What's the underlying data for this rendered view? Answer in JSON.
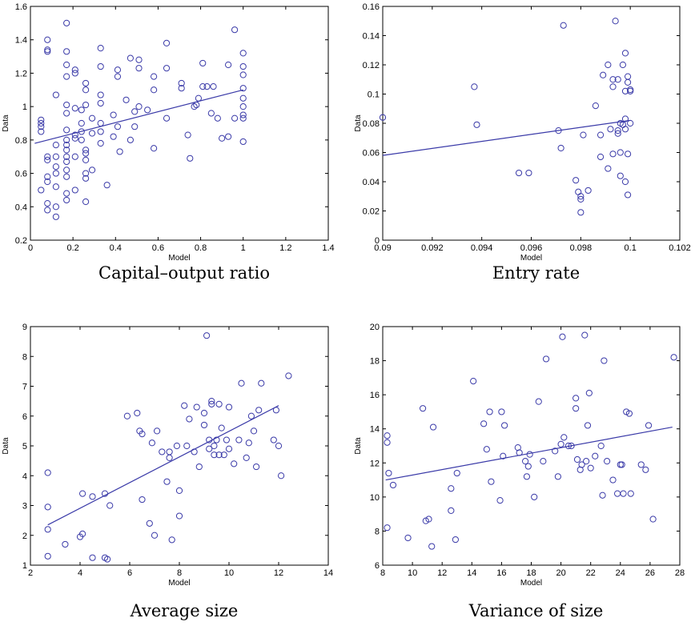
{
  "chart_data": [
    {
      "type": "scatter",
      "caption": "Capital–output ratio",
      "xlabel": "Model",
      "ylabel": "Data",
      "xlim": [
        0,
        1.4
      ],
      "ylim": [
        0.2,
        1.6
      ],
      "xticks": [
        "0",
        "0.2",
        "0.4",
        "0.6",
        "0.8",
        "1",
        "1.2",
        "1.4"
      ],
      "yticks": [
        "0.2",
        "0.4",
        "0.6",
        "0.8",
        "1",
        "1.2",
        "1.4",
        "1.6"
      ],
      "fit_line": [
        [
          0.02,
          0.78
        ],
        [
          1.0,
          1.1
        ]
      ],
      "points": [
        [
          0.05,
          0.9
        ],
        [
          0.05,
          0.88
        ],
        [
          0.05,
          0.85
        ],
        [
          0.05,
          0.5
        ],
        [
          0.05,
          0.92
        ],
        [
          0.08,
          1.4
        ],
        [
          0.08,
          1.34
        ],
        [
          0.08,
          1.33
        ],
        [
          0.08,
          0.7
        ],
        [
          0.08,
          0.68
        ],
        [
          0.08,
          0.58
        ],
        [
          0.08,
          0.55
        ],
        [
          0.08,
          0.42
        ],
        [
          0.08,
          0.38
        ],
        [
          0.12,
          1.07
        ],
        [
          0.12,
          0.77
        ],
        [
          0.12,
          0.7
        ],
        [
          0.12,
          0.64
        ],
        [
          0.12,
          0.6
        ],
        [
          0.12,
          0.52
        ],
        [
          0.12,
          0.4
        ],
        [
          0.12,
          0.34
        ],
        [
          0.17,
          1.5
        ],
        [
          0.17,
          1.33
        ],
        [
          0.17,
          1.25
        ],
        [
          0.17,
          1.18
        ],
        [
          0.17,
          1.01
        ],
        [
          0.17,
          0.96
        ],
        [
          0.17,
          0.86
        ],
        [
          0.17,
          0.8
        ],
        [
          0.17,
          0.77
        ],
        [
          0.17,
          0.74
        ],
        [
          0.17,
          0.7
        ],
        [
          0.17,
          0.67
        ],
        [
          0.17,
          0.62
        ],
        [
          0.17,
          0.58
        ],
        [
          0.17,
          0.48
        ],
        [
          0.17,
          0.44
        ],
        [
          0.21,
          1.22
        ],
        [
          0.21,
          1.2
        ],
        [
          0.21,
          0.99
        ],
        [
          0.21,
          0.83
        ],
        [
          0.21,
          0.81
        ],
        [
          0.21,
          0.7
        ],
        [
          0.21,
          0.5
        ],
        [
          0.24,
          0.98
        ],
        [
          0.24,
          0.9
        ],
        [
          0.24,
          0.85
        ],
        [
          0.24,
          0.8
        ],
        [
          0.26,
          1.14
        ],
        [
          0.26,
          1.1
        ],
        [
          0.26,
          1.01
        ],
        [
          0.26,
          0.74
        ],
        [
          0.26,
          0.72
        ],
        [
          0.26,
          0.68
        ],
        [
          0.26,
          0.6
        ],
        [
          0.26,
          0.57
        ],
        [
          0.26,
          0.43
        ],
        [
          0.29,
          0.93
        ],
        [
          0.29,
          0.84
        ],
        [
          0.29,
          0.62
        ],
        [
          0.33,
          1.35
        ],
        [
          0.33,
          1.24
        ],
        [
          0.33,
          1.07
        ],
        [
          0.33,
          1.02
        ],
        [
          0.33,
          0.9
        ],
        [
          0.33,
          0.85
        ],
        [
          0.33,
          0.78
        ],
        [
          0.36,
          0.53
        ],
        [
          0.39,
          0.95
        ],
        [
          0.39,
          0.82
        ],
        [
          0.41,
          1.22
        ],
        [
          0.41,
          1.18
        ],
        [
          0.41,
          0.88
        ],
        [
          0.42,
          0.73
        ],
        [
          0.45,
          1.04
        ],
        [
          0.47,
          1.29
        ],
        [
          0.47,
          0.8
        ],
        [
          0.49,
          0.97
        ],
        [
          0.49,
          0.88
        ],
        [
          0.51,
          1.28
        ],
        [
          0.51,
          1.23
        ],
        [
          0.51,
          1.0
        ],
        [
          0.55,
          0.98
        ],
        [
          0.58,
          1.18
        ],
        [
          0.58,
          1.1
        ],
        [
          0.58,
          0.75
        ],
        [
          0.64,
          1.38
        ],
        [
          0.64,
          1.23
        ],
        [
          0.64,
          0.93
        ],
        [
          0.71,
          1.14
        ],
        [
          0.71,
          1.11
        ],
        [
          0.74,
          0.83
        ],
        [
          0.75,
          0.69
        ],
        [
          0.77,
          1.0
        ],
        [
          0.78,
          1.01
        ],
        [
          0.79,
          1.05
        ],
        [
          0.81,
          1.12
        ],
        [
          0.81,
          1.26
        ],
        [
          0.83,
          1.12
        ],
        [
          0.85,
          0.96
        ],
        [
          0.86,
          1.12
        ],
        [
          0.88,
          0.93
        ],
        [
          0.9,
          0.81
        ],
        [
          0.93,
          1.25
        ],
        [
          0.93,
          0.82
        ],
        [
          0.96,
          1.46
        ],
        [
          0.96,
          0.93
        ],
        [
          1.0,
          1.32
        ],
        [
          1.0,
          1.24
        ],
        [
          1.0,
          1.19
        ],
        [
          1.0,
          1.11
        ],
        [
          1.0,
          1.05
        ],
        [
          1.0,
          1.0
        ],
        [
          1.0,
          0.95
        ],
        [
          1.0,
          0.93
        ],
        [
          1.0,
          0.79
        ]
      ]
    },
    {
      "type": "scatter",
      "caption": "Entry rate",
      "xlabel": "Model",
      "ylabel": "Data",
      "xlim": [
        0.09,
        0.102
      ],
      "ylim": [
        0,
        0.16
      ],
      "xticks": [
        "0.09",
        "0.092",
        "0.094",
        "0.096",
        "0.098",
        "0.1",
        "0.102"
      ],
      "yticks": [
        "0",
        "0.02",
        "0.04",
        "0.06",
        "0.08",
        "0.1",
        "0.12",
        "0.14",
        "0.16"
      ],
      "fit_line": [
        [
          0.09,
          0.058
        ],
        [
          0.1,
          0.082
        ]
      ],
      "points": [
        [
          0.09,
          0.084
        ],
        [
          0.0937,
          0.105
        ],
        [
          0.0938,
          0.079
        ],
        [
          0.0955,
          0.046
        ],
        [
          0.0959,
          0.046
        ],
        [
          0.0971,
          0.075
        ],
        [
          0.0972,
          0.063
        ],
        [
          0.0973,
          0.147
        ],
        [
          0.0978,
          0.041
        ],
        [
          0.0979,
          0.033
        ],
        [
          0.098,
          0.03
        ],
        [
          0.098,
          0.019
        ],
        [
          0.098,
          0.028
        ],
        [
          0.0981,
          0.072
        ],
        [
          0.0983,
          0.034
        ],
        [
          0.0986,
          0.092
        ],
        [
          0.0988,
          0.072
        ],
        [
          0.0988,
          0.057
        ],
        [
          0.0989,
          0.113
        ],
        [
          0.0991,
          0.12
        ],
        [
          0.0991,
          0.049
        ],
        [
          0.0992,
          0.076
        ],
        [
          0.0993,
          0.059
        ],
        [
          0.0993,
          0.105
        ],
        [
          0.0993,
          0.11
        ],
        [
          0.0994,
          0.15
        ],
        [
          0.0995,
          0.11
        ],
        [
          0.0995,
          0.075
        ],
        [
          0.0995,
          0.073
        ],
        [
          0.0996,
          0.06
        ],
        [
          0.0996,
          0.044
        ],
        [
          0.0996,
          0.08
        ],
        [
          0.0997,
          0.12
        ],
        [
          0.0997,
          0.079
        ],
        [
          0.0998,
          0.102
        ],
        [
          0.0998,
          0.128
        ],
        [
          0.0998,
          0.083
        ],
        [
          0.0998,
          0.076
        ],
        [
          0.0998,
          0.04
        ],
        [
          0.0999,
          0.112
        ],
        [
          0.0999,
          0.108
        ],
        [
          0.0999,
          0.059
        ],
        [
          0.0999,
          0.031
        ],
        [
          0.1,
          0.102
        ],
        [
          0.1,
          0.103
        ],
        [
          0.1,
          0.08
        ]
      ]
    },
    {
      "type": "scatter",
      "caption": "Average size",
      "xlabel": "Model",
      "ylabel": "Data",
      "xlim": [
        2,
        14
      ],
      "ylim": [
        1,
        9
      ],
      "xticks": [
        "2",
        "4",
        "6",
        "8",
        "10",
        "12",
        "14"
      ],
      "yticks": [
        "1",
        "2",
        "3",
        "4",
        "5",
        "6",
        "7",
        "8",
        "9"
      ],
      "fit_line": [
        [
          2.7,
          2.35
        ],
        [
          12.0,
          6.35
        ]
      ],
      "points": [
        [
          2.7,
          4.1
        ],
        [
          2.7,
          2.95
        ],
        [
          2.7,
          2.2
        ],
        [
          2.7,
          1.3
        ],
        [
          3.4,
          1.7
        ],
        [
          4.0,
          1.95
        ],
        [
          4.1,
          3.4
        ],
        [
          4.1,
          2.05
        ],
        [
          4.5,
          1.25
        ],
        [
          4.5,
          3.3
        ],
        [
          5.0,
          3.4
        ],
        [
          5.0,
          1.25
        ],
        [
          5.1,
          1.2
        ],
        [
          5.2,
          3.0
        ],
        [
          5.9,
          6.0
        ],
        [
          6.3,
          6.1
        ],
        [
          6.4,
          5.5
        ],
        [
          6.5,
          5.4
        ],
        [
          6.5,
          3.2
        ],
        [
          6.8,
          2.4
        ],
        [
          6.9,
          5.1
        ],
        [
          7.0,
          2.0
        ],
        [
          7.1,
          5.5
        ],
        [
          7.3,
          4.8
        ],
        [
          7.5,
          3.8
        ],
        [
          7.6,
          4.8
        ],
        [
          7.6,
          4.6
        ],
        [
          7.7,
          1.85
        ],
        [
          7.9,
          5.0
        ],
        [
          8.0,
          3.5
        ],
        [
          8.0,
          2.65
        ],
        [
          8.2,
          6.35
        ],
        [
          8.3,
          5.0
        ],
        [
          8.4,
          5.9
        ],
        [
          8.6,
          4.8
        ],
        [
          8.7,
          6.3
        ],
        [
          8.8,
          4.3
        ],
        [
          9.0,
          5.7
        ],
        [
          9.0,
          6.1
        ],
        [
          9.1,
          8.7
        ],
        [
          9.2,
          5.2
        ],
        [
          9.2,
          4.9
        ],
        [
          9.3,
          6.5
        ],
        [
          9.3,
          6.4
        ],
        [
          9.4,
          5.0
        ],
        [
          9.4,
          4.7
        ],
        [
          9.5,
          5.2
        ],
        [
          9.6,
          6.4
        ],
        [
          9.6,
          4.7
        ],
        [
          9.7,
          5.6
        ],
        [
          9.8,
          4.7
        ],
        [
          9.9,
          5.2
        ],
        [
          10.0,
          6.3
        ],
        [
          10.0,
          4.9
        ],
        [
          10.2,
          4.4
        ],
        [
          10.4,
          5.2
        ],
        [
          10.5,
          7.1
        ],
        [
          10.7,
          4.6
        ],
        [
          10.8,
          5.1
        ],
        [
          10.9,
          6.0
        ],
        [
          11.0,
          5.5
        ],
        [
          11.1,
          4.3
        ],
        [
          11.2,
          6.2
        ],
        [
          11.3,
          7.1
        ],
        [
          11.8,
          5.2
        ],
        [
          11.9,
          6.2
        ],
        [
          12.0,
          5.0
        ],
        [
          12.1,
          4.0
        ],
        [
          12.4,
          7.35
        ]
      ]
    },
    {
      "type": "scatter",
      "caption": "Variance of size",
      "xlabel": "Model",
      "ylabel": "Data",
      "xlim": [
        8,
        28
      ],
      "ylim": [
        6,
        20
      ],
      "xticks": [
        "8",
        "10",
        "12",
        "14",
        "16",
        "18",
        "20",
        "22",
        "24",
        "26",
        "28"
      ],
      "yticks": [
        "6",
        "8",
        "10",
        "12",
        "14",
        "16",
        "18",
        "20"
      ],
      "fit_line": [
        [
          8.2,
          11.0
        ],
        [
          27.5,
          14.1
        ]
      ],
      "points": [
        [
          8.3,
          13.6
        ],
        [
          8.3,
          13.2
        ],
        [
          8.3,
          8.2
        ],
        [
          8.4,
          11.4
        ],
        [
          8.7,
          10.7
        ],
        [
          9.7,
          7.6
        ],
        [
          10.7,
          15.2
        ],
        [
          10.9,
          8.6
        ],
        [
          11.1,
          8.7
        ],
        [
          11.3,
          7.1
        ],
        [
          11.4,
          14.1
        ],
        [
          12.6,
          9.2
        ],
        [
          12.6,
          10.5
        ],
        [
          12.9,
          7.5
        ],
        [
          13.0,
          11.4
        ],
        [
          14.1,
          16.8
        ],
        [
          14.8,
          14.3
        ],
        [
          15.0,
          12.8
        ],
        [
          15.2,
          15.0
        ],
        [
          15.3,
          10.9
        ],
        [
          15.9,
          9.8
        ],
        [
          16.0,
          15.0
        ],
        [
          16.1,
          12.4
        ],
        [
          16.2,
          14.2
        ],
        [
          17.1,
          12.9
        ],
        [
          17.2,
          12.6
        ],
        [
          17.6,
          12.1
        ],
        [
          17.7,
          11.2
        ],
        [
          17.8,
          11.8
        ],
        [
          17.9,
          12.5
        ],
        [
          18.2,
          10.0
        ],
        [
          18.5,
          15.6
        ],
        [
          18.8,
          12.1
        ],
        [
          19.0,
          18.1
        ],
        [
          19.6,
          12.7
        ],
        [
          19.8,
          11.2
        ],
        [
          20.0,
          13.1
        ],
        [
          20.1,
          19.4
        ],
        [
          20.2,
          13.5
        ],
        [
          20.5,
          13.0
        ],
        [
          20.7,
          13.0
        ],
        [
          21.0,
          15.2
        ],
        [
          21.0,
          15.8
        ],
        [
          21.1,
          12.2
        ],
        [
          21.3,
          11.6
        ],
        [
          21.4,
          11.9
        ],
        [
          21.6,
          19.5
        ],
        [
          21.7,
          12.1
        ],
        [
          21.8,
          14.2
        ],
        [
          21.9,
          16.1
        ],
        [
          22.0,
          11.7
        ],
        [
          22.3,
          12.4
        ],
        [
          22.7,
          13.0
        ],
        [
          22.8,
          10.1
        ],
        [
          22.9,
          18.0
        ],
        [
          23.1,
          12.1
        ],
        [
          23.5,
          11.0
        ],
        [
          23.8,
          10.2
        ],
        [
          24.0,
          11.9
        ],
        [
          24.1,
          11.9
        ],
        [
          24.2,
          10.2
        ],
        [
          24.4,
          15.0
        ],
        [
          24.6,
          14.9
        ],
        [
          24.7,
          10.2
        ],
        [
          25.4,
          11.9
        ],
        [
          25.7,
          11.6
        ],
        [
          25.9,
          14.2
        ],
        [
          26.2,
          8.7
        ],
        [
          27.6,
          18.2
        ]
      ]
    }
  ]
}
